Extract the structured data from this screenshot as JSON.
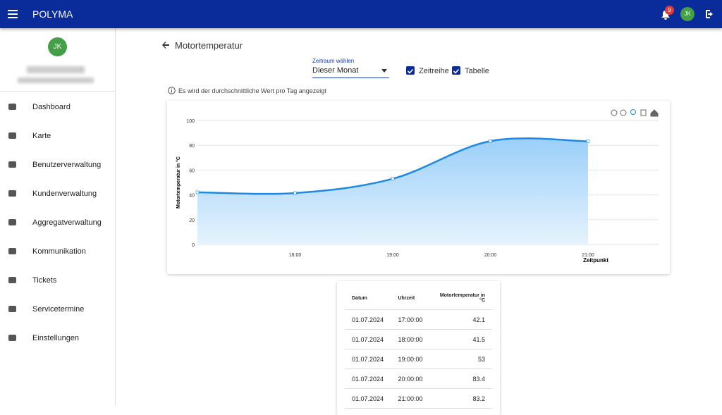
{
  "app_bar": {
    "title": "POLYMA",
    "notification_count": 9,
    "avatar": "JK"
  },
  "sidebar": {
    "avatar": "JK",
    "menu": [
      "Dashboard",
      "Karte",
      "Benutzerverwaltung",
      "Kundenverwaltung",
      "Aggregatverwaltung",
      "Kommunikation",
      "Tickets",
      "Servicetermine",
      "Einstellungen"
    ]
  },
  "page": {
    "title": "Motortemperatur",
    "period_label": "Zeitraum wählen",
    "period_value": "Dieser Monat",
    "checkboxes": [
      "Zeitreihe",
      "Tabelle"
    ],
    "info": "Es wird der durchschnittliche Wert pro Tag angezeigt"
  },
  "chart_data": {
    "type": "area",
    "x_label": "Zeitpunkt",
    "y_label": "Motortemperatur in °C",
    "x": [
      null,
      "18:00",
      "19:00",
      "20:00",
      "21:00"
    ],
    "series": [
      {
        "name": "Motortemperatur",
        "color": "#1e88e5",
        "values": [
          42.1,
          41.5,
          53,
          83.4,
          83.2
        ]
      }
    ],
    "ylim": [
      0,
      100
    ],
    "yticks": [
      0,
      20,
      40,
      60,
      80,
      100
    ],
    "grid": true
  },
  "table": {
    "headers": [
      "Datum",
      "Uhrzeit",
      "Motortemperatur in °C"
    ],
    "rows": [
      [
        "01.07.2024",
        "17:00:00",
        42.1
      ],
      [
        "01.07.2024",
        "18:00:00",
        41.5
      ],
      [
        "01.07.2024",
        "19:00:00",
        53
      ],
      [
        "01.07.2024",
        "20:00:00",
        83.4
      ],
      [
        "01.07.2024",
        "21:00:00",
        83.2
      ]
    ]
  }
}
